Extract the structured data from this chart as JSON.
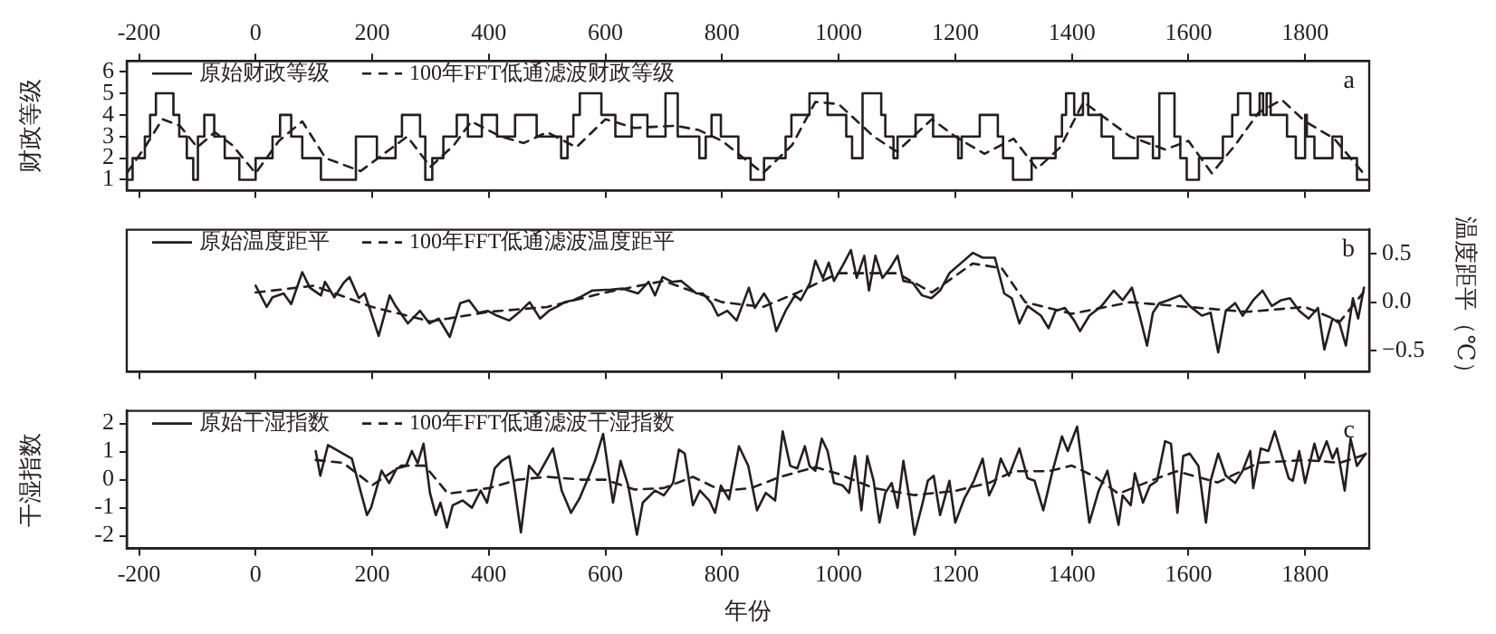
{
  "chart_data": [
    {
      "type": "step",
      "ylabel": "财政等级",
      "xlim": [
        -221,
        1910
      ],
      "ylim": [
        0.5,
        6.5
      ],
      "yticks": [
        1,
        2,
        3,
        4,
        5,
        6
      ],
      "xticks": [
        {
          "value": -200,
          "label": null
        },
        {
          "value": 0,
          "label": null
        },
        {
          "value": 200,
          "label": null
        },
        {
          "value": 400,
          "label": null
        },
        {
          "value": 600,
          "label": null
        },
        {
          "value": 800,
          "label": null
        },
        {
          "value": 1000,
          "label": null
        },
        {
          "value": 1200,
          "label": null
        },
        {
          "value": 1400,
          "label": null
        },
        {
          "value": 1600,
          "label": null
        },
        {
          "value": 1800,
          "label": null
        }
      ],
      "x2lim": [
        -221,
        1910
      ],
      "x2ticks": [
        -200,
        0,
        200,
        400,
        600,
        800,
        1000,
        1200,
        1400,
        1600,
        1800
      ],
      "tick_labels": "y",
      "legend": "top left",
      "annotations": [
        "a"
      ],
      "series": [
        {
          "name": "原始财政等级",
          "color": "#231f20",
          "x": [
            -221,
            -211,
            -190,
            -181,
            -171,
            -141,
            -131,
            -118,
            -107,
            -99,
            -88,
            -71,
            -53,
            -28,
            0,
            29,
            42,
            61,
            80,
            112,
            172,
            208,
            240,
            251,
            282,
            291,
            303,
            322,
            345,
            364,
            388,
            414,
            445,
            482,
            524,
            535,
            545,
            556,
            593,
            617,
            645,
            672,
            703,
            724,
            761,
            772,
            782,
            798,
            828,
            849,
            872,
            909,
            919,
            950,
            981,
            1013,
            1023,
            1041,
            1073,
            1080,
            1094,
            1101,
            1132,
            1162,
            1205,
            1211,
            1242,
            1273,
            1282,
            1299,
            1331,
            1372,
            1383,
            1390,
            1404,
            1419,
            1428,
            1451,
            1471,
            1513,
            1539,
            1550,
            1576,
            1586,
            1597,
            1618,
            1659,
            1675,
            1685,
            1706,
            1722,
            1728,
            1734,
            1741,
            1769,
            1784,
            1800,
            1803,
            1816,
            1847,
            1863,
            1889,
            1894,
            1910
          ],
          "values": [
            3,
            1,
            2,
            3,
            4,
            5,
            4,
            3,
            2,
            1,
            3,
            4,
            3,
            2,
            1,
            2,
            3,
            4,
            3,
            2,
            1,
            3,
            2,
            3,
            4,
            3,
            1,
            2,
            3,
            4,
            3,
            4,
            3,
            4,
            3,
            2,
            3,
            4,
            5,
            4,
            3,
            4,
            3,
            5,
            3,
            2,
            3,
            4,
            3,
            2,
            1,
            2,
            3,
            4,
            5,
            4,
            3,
            2,
            5,
            4,
            3,
            2,
            3,
            4,
            3,
            2,
            3,
            4,
            3,
            2,
            1,
            2,
            3,
            4,
            5,
            4,
            5,
            4,
            3,
            2,
            3,
            2,
            5,
            3,
            2,
            1,
            2,
            3,
            4,
            5,
            4,
            5,
            4,
            5,
            4,
            3,
            2,
            4,
            3,
            2,
            3,
            2,
            1,
            1
          ]
        },
        {
          "name": "100年FFT低通滤波财政等级",
          "type": "line",
          "line_style": "dashed",
          "color": "#231f20",
          "x": [
            -221,
            -190,
            -160,
            -130,
            -100,
            -70,
            -40,
            0,
            40,
            80,
            120,
            180,
            220,
            260,
            300,
            340,
            370,
            420,
            460,
            500,
            550,
            600,
            650,
            720,
            760,
            800,
            870,
            920,
            960,
            1000,
            1060,
            1100,
            1160,
            1200,
            1250,
            1300,
            1340,
            1380,
            1420,
            1460,
            1500,
            1560,
            1600,
            1640,
            1680,
            1720,
            1760,
            1800,
            1850,
            1900
          ],
          "values": [
            1.3,
            2.5,
            3.8,
            3.5,
            2.5,
            3.2,
            2.6,
            1.3,
            2.8,
            3.7,
            2.0,
            1.4,
            2.2,
            3.0,
            1.6,
            2.6,
            3.7,
            3.0,
            2.7,
            3.2,
            2.5,
            3.8,
            3.4,
            3.5,
            3.3,
            2.8,
            1.3,
            2.6,
            4.6,
            4.5,
            3.0,
            2.3,
            3.8,
            3.0,
            2.2,
            2.9,
            1.5,
            2.5,
            4.6,
            3.8,
            3.0,
            2.4,
            2.8,
            1.3,
            2.6,
            4.1,
            4.7,
            3.7,
            2.9,
            1.3
          ]
        }
      ]
    },
    {
      "type": "line",
      "y2label": "温度距平（℃）",
      "xlim": [
        -221,
        1910
      ],
      "y2lim": [
        -0.72,
        0.75
      ],
      "y2ticks": [
        {
          "value": 0.5,
          "label": "0.5"
        },
        {
          "value": 0,
          "label": "0.0"
        },
        {
          "value": -0.5,
          "label": "−0.5"
        }
      ],
      "xticks": [
        {
          "value": -200,
          "label": null
        },
        {
          "value": 0,
          "label": null
        },
        {
          "value": 200,
          "label": null
        },
        {
          "value": 400,
          "label": null
        },
        {
          "value": 600,
          "label": null
        },
        {
          "value": 800,
          "label": null
        },
        {
          "value": 1000,
          "label": null
        },
        {
          "value": 1200,
          "label": null
        },
        {
          "value": 1400,
          "label": null
        },
        {
          "value": 1600,
          "label": null
        },
        {
          "value": 1800,
          "label": null
        }
      ],
      "tick_labels": "y",
      "legend": "top left",
      "annotations": [
        "b"
      ],
      "series": [
        {
          "name": "原始温度距平",
          "axis": "y2",
          "color": "#231f20",
          "x": [
            0,
            19,
            29,
            48,
            61,
            80,
            93,
            112,
            119,
            135,
            151,
            161,
            177,
            187,
            198,
            211,
            230,
            240,
            261,
            282,
            298,
            314,
            333,
            351,
            366,
            382,
            398,
            414,
            435,
            451,
            470,
            488,
            503,
            519,
            530,
            545,
            556,
            577,
            609,
            630,
            656,
            674,
            685,
            698,
            714,
            730,
            756,
            767,
            782,
            793,
            809,
            825,
            846,
            856,
            872,
            882,
            893,
            909,
            925,
            935,
            951,
            960,
            973,
            983,
            992,
            1007,
            1021,
            1031,
            1044,
            1052,
            1063,
            1075,
            1088,
            1101,
            1111,
            1127,
            1143,
            1159,
            1174,
            1190,
            1211,
            1230,
            1247,
            1268,
            1284,
            1297,
            1310,
            1324,
            1347,
            1360,
            1372,
            1388,
            1404,
            1414,
            1430,
            1451,
            1472,
            1487,
            1503,
            1515,
            1529,
            1539,
            1550,
            1565,
            1586,
            1602,
            1623,
            1638,
            1651,
            1664,
            1680,
            1693,
            1711,
            1727,
            1743,
            1759,
            1774,
            1790,
            1806,
            1822,
            1833,
            1847,
            1859,
            1870,
            1882,
            1891,
            1901
          ],
          "values": [
            0.17,
            -0.05,
            0.05,
            0.09,
            -0.02,
            0.31,
            0.15,
            0.07,
            0.21,
            0.05,
            0.2,
            0.26,
            0.04,
            0.09,
            -0.11,
            -0.35,
            0.07,
            -0.04,
            -0.22,
            -0.09,
            -0.22,
            -0.17,
            -0.36,
            -0.01,
            0.02,
            -0.11,
            -0.09,
            -0.14,
            -0.19,
            -0.11,
            0.0,
            -0.17,
            -0.09,
            -0.04,
            0.0,
            0.02,
            0.05,
            0.12,
            0.13,
            0.14,
            0.09,
            0.21,
            0.07,
            0.26,
            0.21,
            0.22,
            0.09,
            0.09,
            -0.01,
            -0.14,
            -0.09,
            -0.19,
            0.15,
            -0.06,
            0.09,
            -0.01,
            -0.3,
            -0.09,
            0.07,
            0.02,
            0.2,
            0.43,
            0.25,
            0.41,
            0.22,
            0.38,
            0.54,
            0.25,
            0.48,
            0.12,
            0.48,
            0.25,
            0.35,
            0.48,
            0.22,
            0.2,
            0.07,
            0.04,
            0.12,
            0.3,
            0.41,
            0.51,
            0.46,
            0.46,
            0.09,
            0.04,
            -0.22,
            -0.04,
            -0.14,
            -0.27,
            -0.09,
            -0.06,
            -0.19,
            -0.3,
            -0.14,
            -0.04,
            0.12,
            0.02,
            0.15,
            -0.11,
            -0.45,
            -0.11,
            -0.01,
            0.02,
            0.07,
            -0.04,
            -0.14,
            -0.11,
            -0.52,
            -0.09,
            -0.01,
            -0.14,
            0.02,
            0.12,
            -0.04,
            0.02,
            0.04,
            -0.09,
            -0.17,
            -0.06,
            -0.49,
            -0.17,
            -0.22,
            -0.45,
            0.04,
            -0.17,
            0.15
          ]
        },
        {
          "name": "100年FFT低通滤波温度距平",
          "axis": "y2",
          "line_style": "dashed",
          "color": "#231f20",
          "x": [
            0,
            100,
            200,
            300,
            400,
            500,
            600,
            700,
            800,
            870,
            930,
            1000,
            1050,
            1100,
            1160,
            1230,
            1280,
            1320,
            1400,
            1500,
            1600,
            1700,
            1800,
            1860,
            1900
          ],
          "values": [
            0.1,
            0.17,
            -0.05,
            -0.2,
            -0.1,
            -0.05,
            0.1,
            0.22,
            0.0,
            -0.05,
            0.1,
            0.3,
            0.3,
            0.3,
            0.1,
            0.4,
            0.35,
            0.0,
            -0.12,
            0.0,
            -0.05,
            -0.1,
            -0.05,
            -0.2,
            0.1
          ]
        }
      ]
    },
    {
      "type": "line",
      "ylabel": "干湿指数",
      "xlabel": "年份",
      "xlim": [
        -221,
        1910
      ],
      "ylim": [
        -2.45,
        2.45
      ],
      "yticks": [
        -2,
        -1,
        0,
        1,
        2
      ],
      "xticks": [
        -200,
        0,
        200,
        400,
        600,
        800,
        1000,
        1200,
        1400,
        1600,
        1800
      ],
      "legend": "top left",
      "annotations": [
        "c"
      ],
      "series": [
        {
          "name": "原始干湿指数",
          "color": "#231f20",
          "x": [
            103,
            111,
            124,
            165,
            191,
            198,
            216,
            229,
            242,
            258,
            268,
            278,
            288,
            299,
            309,
            317,
            328,
            338,
            355,
            371,
            386,
            397,
            410,
            422,
            435,
            443,
            455,
            469,
            484,
            510,
            525,
            541,
            556,
            572,
            582,
            596,
            613,
            626,
            639,
            654,
            664,
            685,
            700,
            716,
            726,
            736,
            750,
            762,
            778,
            788,
            798,
            812,
            829,
            845,
            860,
            875,
            891,
            904,
            917,
            929,
            942,
            950,
            960,
            971,
            981,
            992,
            1007,
            1018,
            1028,
            1039,
            1049,
            1060,
            1070,
            1080,
            1091,
            1101,
            1111,
            1122,
            1130,
            1143,
            1153,
            1163,
            1174,
            1190,
            1200,
            1216,
            1232,
            1247,
            1258,
            1268,
            1278,
            1292,
            1310,
            1324,
            1336,
            1351,
            1367,
            1383,
            1393,
            1409,
            1430,
            1446,
            1461,
            1480,
            1487,
            1501,
            1508,
            1522,
            1534,
            1546,
            1560,
            1570,
            1581,
            1591,
            1602,
            1617,
            1630,
            1638,
            1651,
            1664,
            1680,
            1693,
            1706,
            1711,
            1724,
            1737,
            1748,
            1758,
            1772,
            1779,
            1790,
            1800,
            1816,
            1824,
            1837,
            1847,
            1855,
            1868,
            1878,
            1889,
            1904
          ],
          "values": [
            1.02,
            0.14,
            1.23,
            0.75,
            -1.26,
            -1.0,
            0.32,
            -0.12,
            0.4,
            0.49,
            1.02,
            0.58,
            1.28,
            -0.47,
            -1.26,
            -0.82,
            -1.7,
            -0.91,
            -0.74,
            -1.0,
            -0.39,
            -0.82,
            0.4,
            0.67,
            0.84,
            -0.12,
            -1.88,
            0.49,
            0.14,
            1.11,
            -0.39,
            -1.18,
            -0.65,
            0.14,
            0.67,
            1.63,
            -0.82,
            0.67,
            -0.21,
            -1.96,
            -0.82,
            -0.39,
            -0.56,
            -0.12,
            1.07,
            0.93,
            -0.91,
            -0.39,
            -0.74,
            -1.18,
            -0.21,
            -0.7,
            1.19,
            0.49,
            -1.09,
            -0.47,
            -0.74,
            1.72,
            0.49,
            0.4,
            1.19,
            0.49,
            0.32,
            1.46,
            1.02,
            -0.12,
            -0.21,
            -0.47,
            0.84,
            -1.09,
            0.84,
            -0.04,
            -1.53,
            -0.47,
            -0.12,
            -1.0,
            0.67,
            -0.74,
            -1.96,
            -0.91,
            -0.04,
            0.14,
            -1.26,
            -0.04,
            -1.53,
            -0.65,
            -0.04,
            0.75,
            -0.56,
            -0.12,
            0.75,
            0.14,
            1.11,
            0.05,
            -0.04,
            -1.09,
            0.32,
            1.54,
            1.02,
            1.89,
            -1.53,
            -0.39,
            0.32,
            -1.61,
            -0.56,
            -0.91,
            0.23,
            -0.82,
            -0.21,
            -0.04,
            1.37,
            1.28,
            -1.18,
            0.84,
            0.93,
            0.49,
            -1.53,
            -0.04,
            0.93,
            0.14,
            -0.12,
            0.32,
            1.02,
            -0.3,
            1.11,
            1.02,
            1.72,
            1.02,
            0.05,
            -0.04,
            1.02,
            -0.12,
            1.28,
            0.67,
            1.37,
            0.75,
            1.11,
            -0.39,
            1.46,
            0.49,
            0.93
          ]
        },
        {
          "name": "100年FFT低通滤波干湿指数",
          "line_style": "dashed",
          "color": "#231f20",
          "x": [
            103,
            150,
            200,
            250,
            290,
            330,
            400,
            450,
            500,
            560,
            600,
            650,
            700,
            750,
            800,
            850,
            900,
            960,
            1000,
            1060,
            1130,
            1200,
            1260,
            1300,
            1360,
            1400,
            1440,
            1480,
            1540,
            1580,
            1650,
            1720,
            1800,
            1860,
            1904
          ],
          "values": [
            0.7,
            0.6,
            -0.2,
            0.5,
            0.5,
            -0.5,
            -0.3,
            0.0,
            0.1,
            0.0,
            0.0,
            -0.35,
            -0.3,
            0.1,
            -0.4,
            -0.3,
            0.1,
            0.45,
            0.2,
            -0.3,
            -0.55,
            -0.4,
            -0.1,
            0.3,
            0.3,
            0.5,
            0.1,
            -0.5,
            0.0,
            0.3,
            -0.1,
            0.6,
            0.7,
            0.6,
            0.9
          ]
        }
      ]
    }
  ]
}
